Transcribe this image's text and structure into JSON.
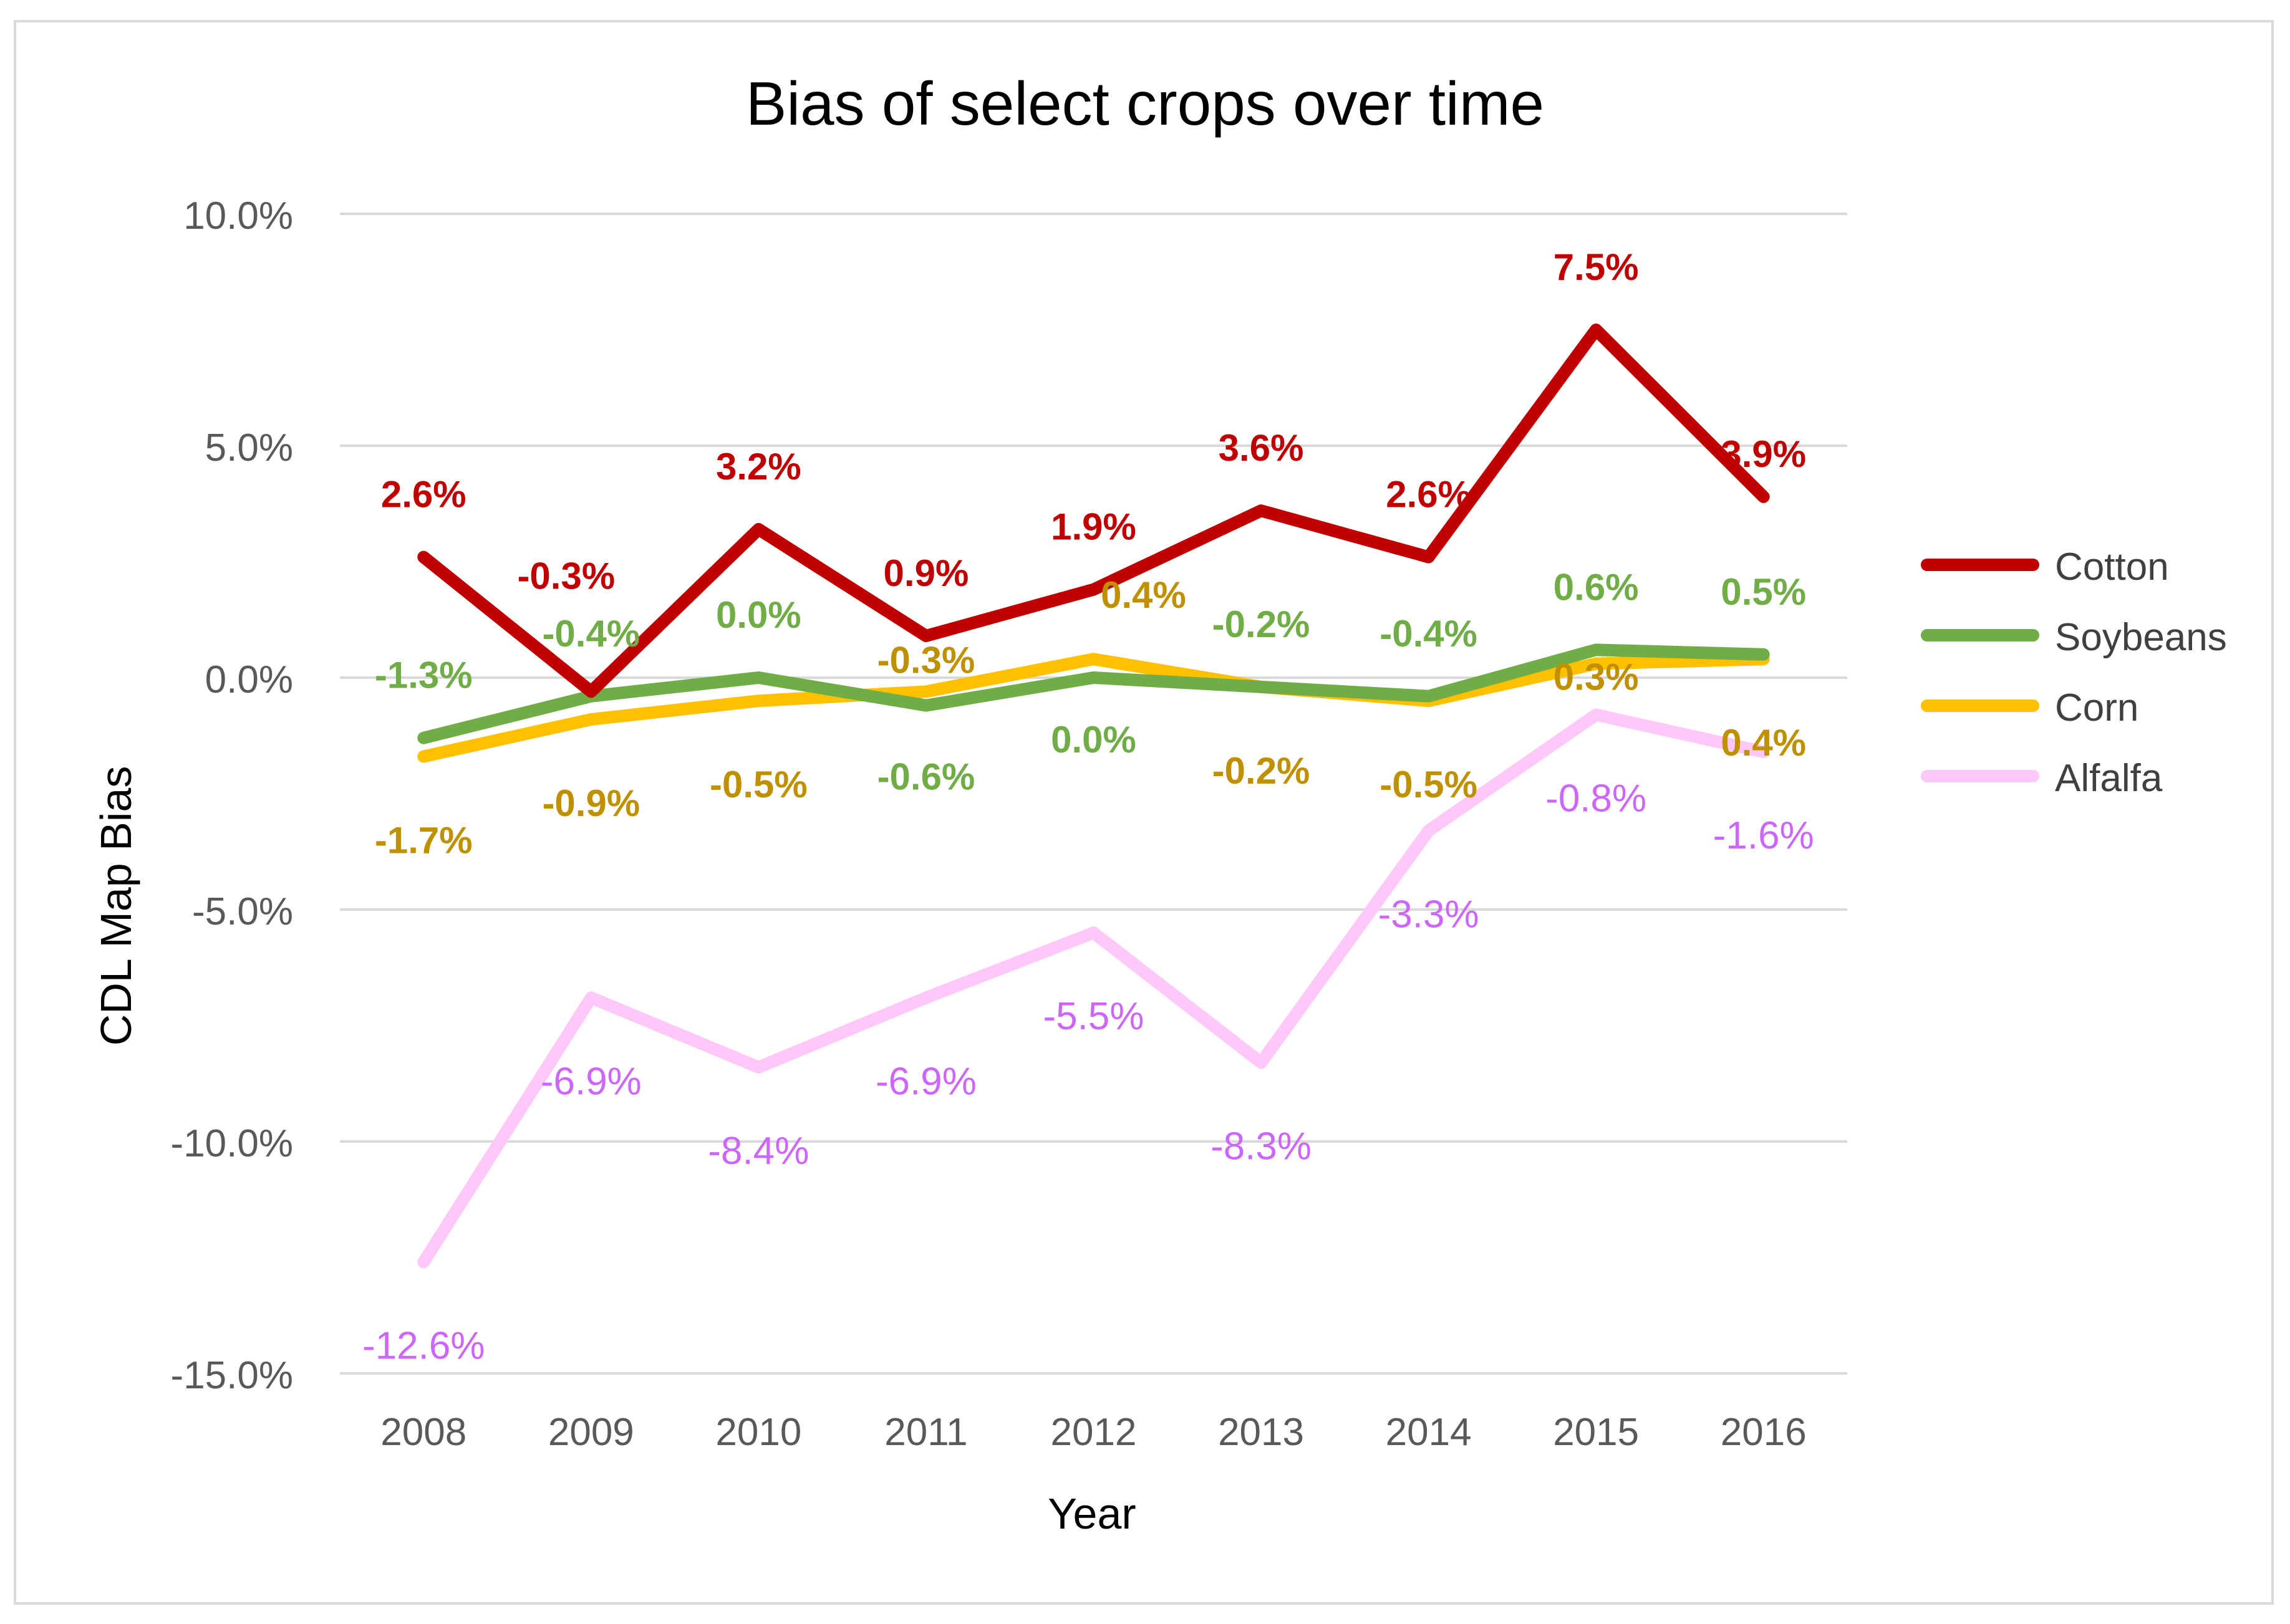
{
  "chart_data": {
    "type": "line",
    "title": "Bias of select crops over time",
    "xlabel": "Year",
    "ylabel": "CDL Map Bias",
    "categories": [
      "2008",
      "2009",
      "2010",
      "2011",
      "2012",
      "2013",
      "2014",
      "2015",
      "2016"
    ],
    "ylim": [
      -15,
      10
    ],
    "yticks": [
      10,
      5,
      0,
      -5,
      -10,
      -15
    ],
    "ytick_labels": [
      "10.0%",
      "5.0%",
      "0.0%",
      "-5.0%",
      "-10.0%",
      "-15.0%"
    ],
    "grid": true,
    "legend_position": "right",
    "series": [
      {
        "name": "Cotton",
        "color": "#C00000",
        "label_color": "#C00000",
        "values": [
          2.6,
          -0.3,
          3.2,
          0.9,
          1.9,
          3.6,
          2.6,
          7.5,
          3.9
        ],
        "labels": [
          "2.6%",
          "-0.3%",
          "3.2%",
          "0.9%",
          "1.9%",
          "3.6%",
          "2.6%",
          "7.5%",
          "3.9%"
        ]
      },
      {
        "name": "Soybeans",
        "color": "#70AD47",
        "label_color": "#70AD47",
        "values": [
          -1.3,
          -0.4,
          0.0,
          -0.6,
          0.0,
          -0.2,
          -0.4,
          0.6,
          0.5
        ],
        "labels": [
          "-1.3%",
          "-0.4%",
          "0.0%",
          "-0.6%",
          "0.0%",
          "-0.2%",
          "-0.4%",
          "0.6%",
          "0.5%"
        ]
      },
      {
        "name": "Corn",
        "color": "#FFC000",
        "label_color": "#BF9000",
        "values": [
          -1.7,
          -0.9,
          -0.5,
          -0.3,
          0.4,
          -0.2,
          -0.5,
          0.3,
          0.4
        ],
        "labels": [
          "-1.7%",
          "-0.9%",
          "-0.5%",
          "-0.3%",
          "0.4%",
          "-0.2%",
          "-0.5%",
          "0.3%",
          "0.4%"
        ]
      },
      {
        "name": "Alfalfa",
        "color": "#FFC8F8",
        "label_color": "#CC66FF",
        "values": [
          -12.6,
          -6.9,
          -8.4,
          -6.9,
          -5.5,
          -8.3,
          -3.3,
          -0.8,
          -1.6
        ],
        "labels": [
          "-12.6%",
          "-6.9%",
          "-8.4%",
          "-6.9%",
          "-5.5%",
          "-8.3%",
          "-3.3%",
          "-0.8%",
          "-1.6%"
        ]
      }
    ]
  }
}
